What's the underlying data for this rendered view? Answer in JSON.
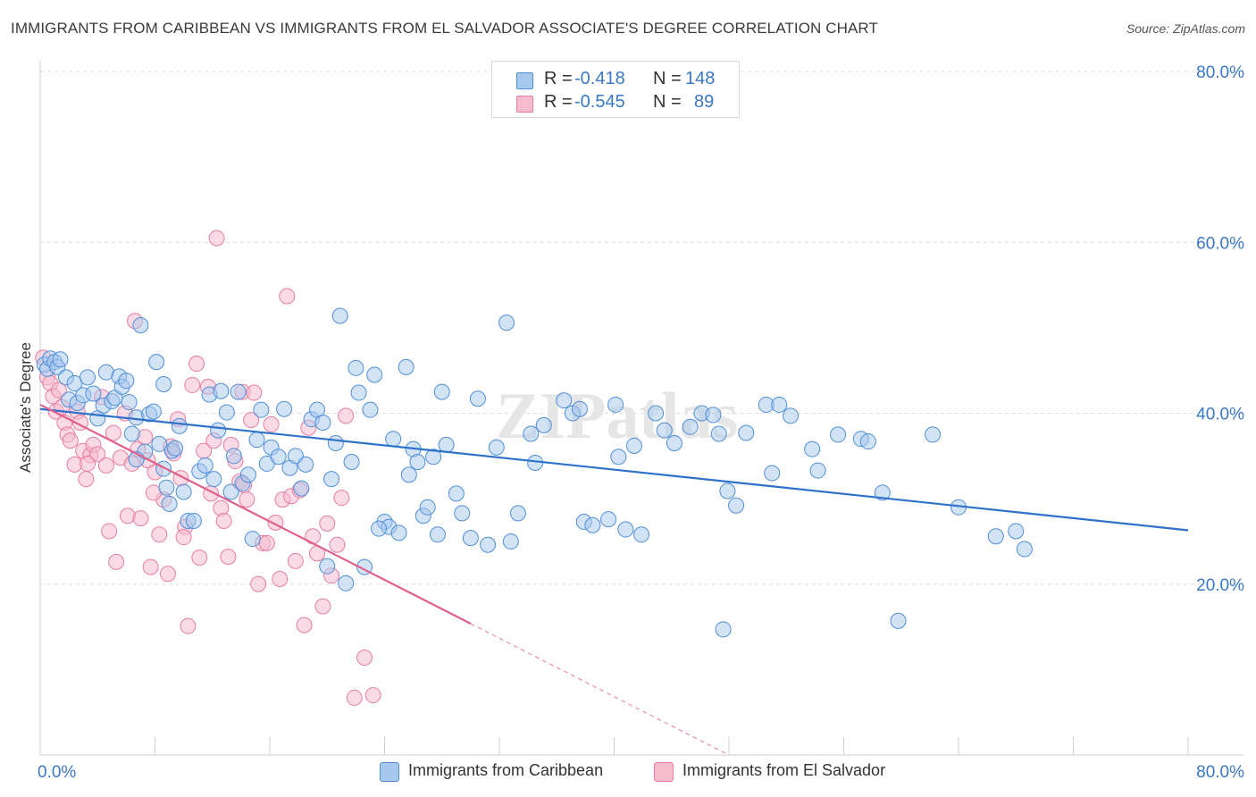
{
  "title": "IMMIGRANTS FROM CARIBBEAN VS IMMIGRANTS FROM EL SALVADOR ASSOCIATE'S DEGREE CORRELATION CHART",
  "source": "Source: ZipAtlas.com",
  "watermark": "ZIPatlas",
  "colors": {
    "blue_fill": "#a7c8ee",
    "blue_stroke": "#4f8fd8",
    "blue_line": "#2f72c9",
    "pink_fill": "#f6bccd",
    "pink_stroke": "#e77ea0",
    "pink_line": "#e0608d",
    "axis_label": "#3a78c8"
  },
  "legend": {
    "rows": [
      {
        "r_label": "R =",
        "r_value": "-0.418",
        "n_label": "N =",
        "n_value": "148"
      },
      {
        "r_label": "R =",
        "r_value": "-0.545",
        "n_label": "N =",
        "n_value": "89"
      }
    ]
  },
  "chart_data": {
    "type": "scatter",
    "title": "IMMIGRANTS FROM CARIBBEAN VS IMMIGRANTS FROM EL SALVADOR ASSOCIATE'S DEGREE CORRELATION CHART",
    "xlabel": "",
    "ylabel": "Associate's Degree",
    "xlim": [
      0,
      80
    ],
    "ylim": [
      0,
      80
    ],
    "x_tick_labels": [
      "0.0%",
      "80.0%"
    ],
    "y_tick_labels": [
      "80.0%",
      "60.0%",
      "40.0%",
      "20.0%"
    ],
    "y_ticks": [
      80,
      60,
      40,
      20
    ],
    "grid": true,
    "legend_position": "top-center",
    "series": [
      {
        "name": "Immigrants from Caribbean",
        "color": "#4f8fd8",
        "trend": {
          "x0": 0,
          "y0": 40.5,
          "x1": 80,
          "y1": 26.3,
          "solid_until": 80
        },
        "points": [
          [
            0.3,
            45.7
          ],
          [
            0.5,
            45.2
          ],
          [
            0.7,
            46.4
          ],
          [
            1.0,
            46.0
          ],
          [
            1.2,
            45.4
          ],
          [
            1.4,
            46.3
          ],
          [
            1.8,
            44.2
          ],
          [
            2.0,
            41.6
          ],
          [
            2.4,
            43.5
          ],
          [
            2.6,
            41.2
          ],
          [
            3.0,
            42.1
          ],
          [
            3.3,
            44.2
          ],
          [
            3.7,
            42.3
          ],
          [
            4.0,
            39.4
          ],
          [
            4.4,
            40.9
          ],
          [
            4.6,
            44.8
          ],
          [
            5.0,
            41.4
          ],
          [
            5.2,
            41.8
          ],
          [
            5.5,
            44.3
          ],
          [
            5.7,
            43.1
          ],
          [
            6.0,
            43.8
          ],
          [
            6.2,
            41.3
          ],
          [
            6.4,
            37.6
          ],
          [
            6.7,
            39.5
          ],
          [
            7.0,
            50.3
          ],
          [
            7.3,
            35.5
          ],
          [
            7.6,
            39.9
          ],
          [
            7.9,
            40.2
          ],
          [
            8.1,
            46.0
          ],
          [
            8.3,
            36.4
          ],
          [
            8.6,
            33.5
          ],
          [
            8.8,
            31.3
          ],
          [
            9.0,
            29.4
          ],
          [
            9.2,
            35.6
          ],
          [
            9.4,
            35.9
          ],
          [
            9.7,
            38.5
          ],
          [
            10.0,
            30.8
          ],
          [
            10.3,
            27.4
          ],
          [
            10.7,
            27.4
          ],
          [
            11.1,
            33.2
          ],
          [
            11.5,
            33.9
          ],
          [
            11.8,
            42.2
          ],
          [
            12.1,
            32.3
          ],
          [
            12.4,
            38.0
          ],
          [
            13.0,
            40.1
          ],
          [
            13.3,
            30.8
          ],
          [
            13.5,
            35.0
          ],
          [
            13.8,
            42.5
          ],
          [
            14.1,
            31.8
          ],
          [
            14.5,
            32.8
          ],
          [
            14.8,
            25.3
          ],
          [
            15.1,
            36.9
          ],
          [
            15.4,
            40.4
          ],
          [
            15.8,
            34.1
          ],
          [
            16.1,
            36.0
          ],
          [
            16.6,
            34.9
          ],
          [
            17.0,
            40.5
          ],
          [
            17.4,
            33.6
          ],
          [
            17.8,
            35.0
          ],
          [
            18.2,
            31.2
          ],
          [
            18.5,
            34.0
          ],
          [
            18.9,
            39.3
          ],
          [
            19.3,
            40.4
          ],
          [
            19.7,
            38.9
          ],
          [
            20.0,
            22.1
          ],
          [
            20.3,
            32.3
          ],
          [
            20.6,
            36.5
          ],
          [
            20.9,
            51.4
          ],
          [
            21.3,
            20.1
          ],
          [
            21.7,
            34.3
          ],
          [
            22.0,
            45.3
          ],
          [
            22.2,
            42.4
          ],
          [
            22.6,
            22.0
          ],
          [
            23.0,
            40.4
          ],
          [
            23.3,
            44.5
          ],
          [
            24.0,
            27.3
          ],
          [
            24.3,
            26.7
          ],
          [
            24.6,
            37.0
          ],
          [
            25.0,
            26.0
          ],
          [
            25.5,
            45.4
          ],
          [
            25.7,
            32.8
          ],
          [
            26.0,
            35.8
          ],
          [
            26.3,
            34.3
          ],
          [
            26.7,
            28.0
          ],
          [
            27.0,
            29.0
          ],
          [
            27.4,
            34.9
          ],
          [
            27.7,
            25.8
          ],
          [
            28.0,
            42.5
          ],
          [
            28.3,
            36.3
          ],
          [
            29.0,
            30.6
          ],
          [
            29.4,
            28.3
          ],
          [
            30.0,
            25.4
          ],
          [
            30.5,
            41.7
          ],
          [
            31.2,
            24.6
          ],
          [
            31.8,
            36.0
          ],
          [
            32.5,
            50.6
          ],
          [
            32.8,
            25.0
          ],
          [
            33.3,
            28.3
          ],
          [
            34.2,
            37.6
          ],
          [
            34.5,
            34.2
          ],
          [
            35.1,
            38.6
          ],
          [
            36.5,
            41.5
          ],
          [
            37.1,
            40.0
          ],
          [
            37.6,
            40.5
          ],
          [
            37.9,
            27.3
          ],
          [
            38.5,
            26.9
          ],
          [
            39.6,
            27.6
          ],
          [
            40.1,
            41.0
          ],
          [
            40.3,
            34.9
          ],
          [
            40.8,
            26.4
          ],
          [
            41.4,
            36.2
          ],
          [
            41.9,
            25.8
          ],
          [
            42.9,
            40.0
          ],
          [
            43.5,
            38.0
          ],
          [
            44.2,
            36.5
          ],
          [
            45.3,
            38.4
          ],
          [
            46.1,
            40.0
          ],
          [
            46.9,
            39.8
          ],
          [
            47.3,
            37.6
          ],
          [
            47.9,
            30.9
          ],
          [
            48.5,
            29.2
          ],
          [
            49.2,
            37.7
          ],
          [
            50.6,
            41.0
          ],
          [
            51.0,
            33.0
          ],
          [
            51.5,
            41.0
          ],
          [
            52.3,
            39.7
          ],
          [
            53.8,
            35.8
          ],
          [
            54.2,
            33.3
          ],
          [
            55.6,
            37.5
          ],
          [
            57.2,
            37.0
          ],
          [
            57.7,
            36.7
          ],
          [
            58.7,
            30.7
          ],
          [
            59.8,
            15.7
          ],
          [
            62.2,
            37.5
          ],
          [
            64.0,
            29.0
          ],
          [
            66.6,
            25.6
          ],
          [
            68.0,
            26.2
          ],
          [
            68.6,
            24.1
          ],
          [
            47.6,
            14.7
          ],
          [
            6.7,
            34.6
          ],
          [
            8.6,
            43.4
          ],
          [
            12.6,
            42.6
          ],
          [
            23.6,
            26.5
          ]
        ]
      },
      {
        "name": "Immigrants from El Salvador",
        "color": "#e77ea0",
        "trend": {
          "x0": 0,
          "y0": 41.0,
          "x1": 48,
          "y1": 0.0,
          "solid_until": 30
        },
        "points": [
          [
            0.2,
            46.5
          ],
          [
            0.5,
            44.2
          ],
          [
            0.7,
            43.5
          ],
          [
            0.9,
            42.0
          ],
          [
            1.1,
            40.2
          ],
          [
            1.3,
            42.7
          ],
          [
            1.5,
            40.7
          ],
          [
            1.7,
            38.9
          ],
          [
            1.9,
            37.5
          ],
          [
            2.1,
            36.8
          ],
          [
            2.4,
            34.0
          ],
          [
            2.6,
            40.2
          ],
          [
            2.8,
            38.9
          ],
          [
            3.0,
            35.6
          ],
          [
            3.2,
            32.3
          ],
          [
            3.5,
            35.1
          ],
          [
            3.7,
            36.3
          ],
          [
            4.0,
            35.2
          ],
          [
            4.3,
            41.9
          ],
          [
            4.6,
            33.9
          ],
          [
            4.8,
            26.2
          ],
          [
            5.1,
            37.7
          ],
          [
            5.3,
            22.6
          ],
          [
            5.6,
            34.8
          ],
          [
            5.9,
            40.0
          ],
          [
            6.1,
            28.0
          ],
          [
            6.4,
            34.1
          ],
          [
            6.6,
            50.8
          ],
          [
            6.8,
            35.8
          ],
          [
            7.0,
            27.7
          ],
          [
            7.3,
            37.2
          ],
          [
            7.5,
            34.5
          ],
          [
            7.7,
            22.0
          ],
          [
            8.0,
            33.1
          ],
          [
            8.3,
            25.8
          ],
          [
            8.6,
            29.9
          ],
          [
            8.9,
            21.2
          ],
          [
            9.1,
            36.1
          ],
          [
            9.3,
            35.3
          ],
          [
            9.6,
            39.3
          ],
          [
            9.8,
            32.4
          ],
          [
            10.1,
            26.7
          ],
          [
            10.3,
            15.1
          ],
          [
            10.6,
            43.3
          ],
          [
            10.9,
            45.8
          ],
          [
            11.1,
            23.1
          ],
          [
            11.4,
            35.6
          ],
          [
            11.7,
            43.1
          ],
          [
            11.9,
            30.6
          ],
          [
            12.1,
            36.8
          ],
          [
            12.3,
            60.5
          ],
          [
            12.6,
            28.9
          ],
          [
            12.8,
            27.4
          ],
          [
            13.1,
            23.2
          ],
          [
            13.3,
            36.3
          ],
          [
            13.6,
            34.4
          ],
          [
            13.9,
            32.0
          ],
          [
            14.1,
            42.5
          ],
          [
            14.4,
            29.9
          ],
          [
            14.7,
            39.2
          ],
          [
            14.9,
            42.4
          ],
          [
            15.2,
            20.0
          ],
          [
            15.5,
            24.8
          ],
          [
            15.8,
            24.8
          ],
          [
            16.1,
            38.7
          ],
          [
            16.4,
            27.2
          ],
          [
            16.7,
            20.6
          ],
          [
            16.9,
            29.9
          ],
          [
            17.2,
            53.7
          ],
          [
            17.5,
            30.3
          ],
          [
            17.8,
            22.7
          ],
          [
            18.1,
            31.0
          ],
          [
            18.4,
            15.2
          ],
          [
            18.7,
            38.3
          ],
          [
            19.0,
            25.6
          ],
          [
            19.3,
            23.6
          ],
          [
            19.7,
            17.4
          ],
          [
            20.0,
            27.1
          ],
          [
            20.3,
            21.0
          ],
          [
            20.7,
            24.6
          ],
          [
            21.0,
            30.1
          ],
          [
            21.3,
            39.7
          ],
          [
            21.9,
            6.7
          ],
          [
            22.6,
            11.4
          ],
          [
            23.2,
            7.0
          ],
          [
            3.3,
            34.1
          ],
          [
            7.9,
            30.7
          ],
          [
            10.0,
            25.5
          ],
          [
            14.2,
            31.6
          ]
        ]
      }
    ]
  },
  "x_axis_ticks": [
    0,
    8,
    16,
    24,
    32,
    40,
    48,
    56,
    64,
    72,
    80
  ],
  "bottom_legend": [
    {
      "label": "Immigrants from Caribbean"
    },
    {
      "label": "Immigrants from El Salvador"
    }
  ]
}
